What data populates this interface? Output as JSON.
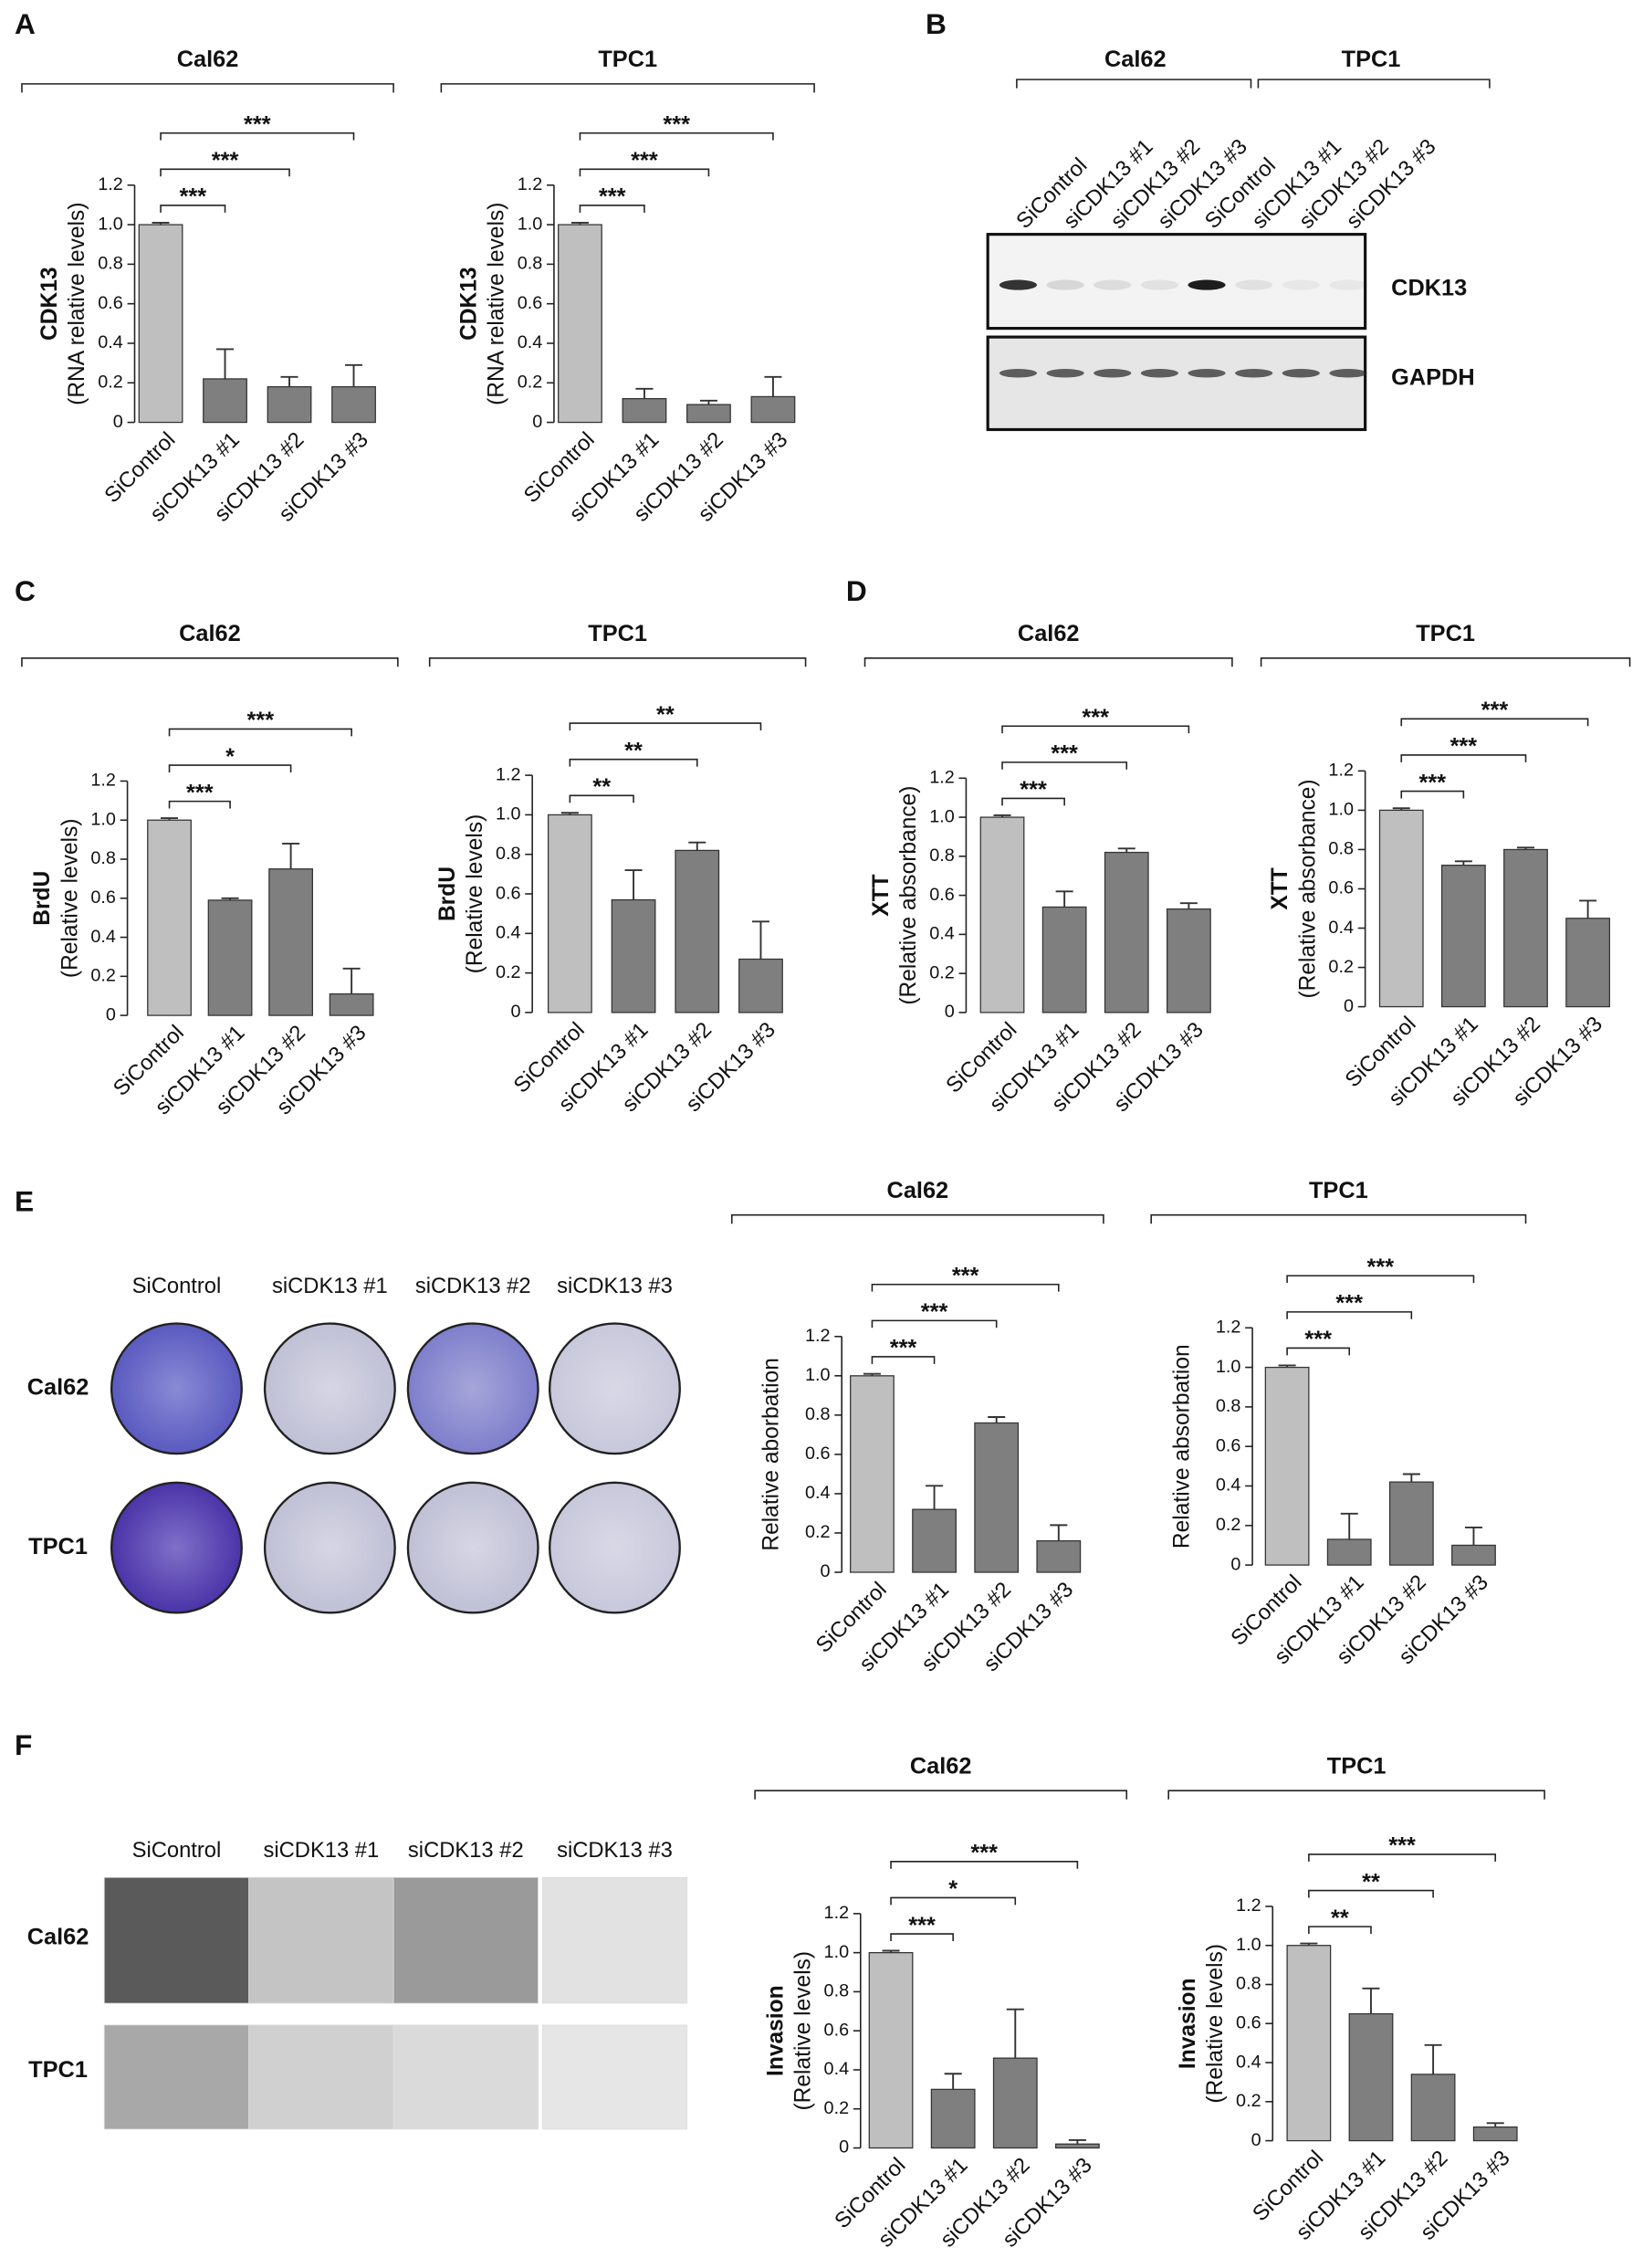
{
  "panel_labels": [
    "A",
    "B",
    "C",
    "D",
    "E",
    "F"
  ],
  "blot": {
    "groups": [
      "Cal62",
      "TPC1"
    ],
    "lanes": [
      "SiControl",
      "siCDK13 #1",
      "siCDK13 #2",
      "siCDK13 #3",
      "SiControl",
      "siCDK13 #1",
      "siCDK13 #2",
      "siCDK13 #3"
    ],
    "proteins": [
      "CDK13",
      "GAPDH"
    ]
  },
  "colony_assay": {
    "columns": [
      "SiControl",
      "siCDK13 #1",
      "siCDK13 #2",
      "siCDK13 #3"
    ],
    "rows": [
      "Cal62",
      "TPC1"
    ]
  },
  "invasion_assay": {
    "columns": [
      "SiControl",
      "siCDK13 #1",
      "siCDK13 #2",
      "siCDK13 #3"
    ],
    "rows": [
      "Cal62",
      "TPC1"
    ]
  },
  "chart_data": [
    {
      "type": "bar",
      "title": "Cal62",
      "ylabel": [
        "CDK13",
        "(RNA relative levels)"
      ],
      "categories": [
        "SiControl",
        "siCDK13 #1",
        "siCDK13 #2",
        "siCDK13 #3"
      ],
      "values": [
        1.0,
        0.22,
        0.18,
        0.18
      ],
      "errors": [
        0.01,
        0.15,
        0.05,
        0.11
      ],
      "colors": [
        "#bfbfbf",
        "#7f7f7f",
        "#7f7f7f",
        "#7f7f7f"
      ],
      "ylim": [
        0,
        1.2
      ],
      "yticks": [
        0,
        0.2,
        0.4,
        0.6,
        0.8,
        {
          "value": 1,
          "label": "1.0"
        },
        1.2
      ],
      "significance": [
        {
          "pair": [
            0,
            1
          ],
          "label": "***"
        },
        {
          "pair": [
            0,
            2
          ],
          "label": "***"
        },
        {
          "pair": [
            0,
            3
          ],
          "label": "***"
        }
      ]
    },
    {
      "type": "bar",
      "title": "TPC1",
      "ylabel": [
        "CDK13",
        "(RNA relative levels)"
      ],
      "categories": [
        "SiControl",
        "siCDK13 #1",
        "siCDK13 #2",
        "siCDK13 #3"
      ],
      "values": [
        1.0,
        0.12,
        0.09,
        0.13
      ],
      "errors": [
        0.01,
        0.05,
        0.02,
        0.1
      ],
      "colors": [
        "#bfbfbf",
        "#7f7f7f",
        "#7f7f7f",
        "#7f7f7f"
      ],
      "ylim": [
        0,
        1.2
      ],
      "yticks": [
        0,
        0.2,
        0.4,
        0.6,
        0.8,
        {
          "value": 1,
          "label": "1.0"
        },
        1.2
      ],
      "significance": [
        {
          "pair": [
            0,
            1
          ],
          "label": "***"
        },
        {
          "pair": [
            0,
            2
          ],
          "label": "***"
        },
        {
          "pair": [
            0,
            3
          ],
          "label": "***"
        }
      ]
    },
    {
      "type": "bar",
      "title": "Cal62",
      "ylabel": [
        "BrdU",
        "(Relative levels)"
      ],
      "categories": [
        "SiControl",
        "siCDK13 #1",
        "siCDK13 #2",
        "siCDK13 #3"
      ],
      "values": [
        1.0,
        0.59,
        0.75,
        0.11
      ],
      "errors": [
        0.01,
        0.01,
        0.13,
        0.13
      ],
      "colors": [
        "#bfbfbf",
        "#7f7f7f",
        "#7f7f7f",
        "#7f7f7f"
      ],
      "ylim": [
        0,
        1.2
      ],
      "yticks": [
        0,
        0.2,
        0.4,
        0.6,
        0.8,
        {
          "value": 1,
          "label": "1.0"
        },
        1.2
      ],
      "significance": [
        {
          "pair": [
            0,
            1
          ],
          "label": "***"
        },
        {
          "pair": [
            0,
            2
          ],
          "label": "*"
        },
        {
          "pair": [
            0,
            3
          ],
          "label": "***"
        }
      ]
    },
    {
      "type": "bar",
      "title": "TPC1",
      "ylabel": [
        "BrdU",
        "(Relative levels)"
      ],
      "categories": [
        "SiControl",
        "siCDK13 #1",
        "siCDK13 #2",
        "siCDK13 #3"
      ],
      "values": [
        1.0,
        0.57,
        0.82,
        0.27
      ],
      "errors": [
        0.01,
        0.15,
        0.04,
        0.19
      ],
      "colors": [
        "#bfbfbf",
        "#7f7f7f",
        "#7f7f7f",
        "#7f7f7f"
      ],
      "ylim": [
        0,
        1.2
      ],
      "yticks": [
        0,
        0.2,
        0.4,
        0.6,
        0.8,
        {
          "value": 1,
          "label": "1.0"
        },
        1.2
      ],
      "significance": [
        {
          "pair": [
            0,
            1
          ],
          "label": "**"
        },
        {
          "pair": [
            0,
            2
          ],
          "label": "**"
        },
        {
          "pair": [
            0,
            3
          ],
          "label": "**"
        }
      ]
    },
    {
      "type": "bar",
      "title": "Cal62",
      "ylabel": [
        "XTT",
        "(Relative absorbance)"
      ],
      "categories": [
        "SiControl",
        "siCDK13 #1",
        "siCDK13 #2",
        "siCDK13 #3"
      ],
      "values": [
        1.0,
        0.54,
        0.82,
        0.53
      ],
      "errors": [
        0.01,
        0.08,
        0.02,
        0.03
      ],
      "colors": [
        "#bfbfbf",
        "#7f7f7f",
        "#7f7f7f",
        "#7f7f7f"
      ],
      "ylim": [
        0,
        1.2
      ],
      "yticks": [
        0,
        0.2,
        0.4,
        0.6,
        0.8,
        {
          "value": 1,
          "label": "1.0"
        },
        1.2
      ],
      "significance": [
        {
          "pair": [
            0,
            1
          ],
          "label": "***"
        },
        {
          "pair": [
            0,
            2
          ],
          "label": "***"
        },
        {
          "pair": [
            0,
            3
          ],
          "label": "***"
        }
      ]
    },
    {
      "type": "bar",
      "title": "TPC1",
      "ylabel": [
        "XTT",
        "(Relative absorbance)"
      ],
      "categories": [
        "SiControl",
        "siCDK13 #1",
        "siCDK13 #2",
        "siCDK13 #3"
      ],
      "values": [
        1.0,
        0.72,
        0.8,
        0.45
      ],
      "errors": [
        0.01,
        0.02,
        0.01,
        0.09
      ],
      "colors": [
        "#bfbfbf",
        "#7f7f7f",
        "#7f7f7f",
        "#7f7f7f"
      ],
      "ylim": [
        0,
        1.2
      ],
      "yticks": [
        0,
        0.2,
        0.4,
        0.6,
        0.8,
        {
          "value": 1,
          "label": "1.0"
        },
        1.2
      ],
      "significance": [
        {
          "pair": [
            0,
            1
          ],
          "label": "***"
        },
        {
          "pair": [
            0,
            2
          ],
          "label": "***"
        },
        {
          "pair": [
            0,
            3
          ],
          "label": "***"
        }
      ]
    },
    {
      "type": "bar",
      "title": "Cal62",
      "ylabel": [
        "Relative aborbation"
      ],
      "categories": [
        "SiControl",
        "siCDK13 #1",
        "siCDK13 #2",
        "siCDK13 #3"
      ],
      "values": [
        1.0,
        0.32,
        0.76,
        0.16
      ],
      "errors": [
        0.01,
        0.12,
        0.03,
        0.08
      ],
      "colors": [
        "#bfbfbf",
        "#7f7f7f",
        "#7f7f7f",
        "#7f7f7f"
      ],
      "ylim": [
        0,
        1.2
      ],
      "yticks": [
        0,
        0.2,
        0.4,
        0.6,
        0.8,
        {
          "value": 1,
          "label": "1.0"
        },
        1.2
      ],
      "significance": [
        {
          "pair": [
            0,
            1
          ],
          "label": "***"
        },
        {
          "pair": [
            0,
            2
          ],
          "label": "***"
        },
        {
          "pair": [
            0,
            3
          ],
          "label": "***"
        }
      ]
    },
    {
      "type": "bar",
      "title": "TPC1",
      "ylabel": [
        "Relative absorbation"
      ],
      "categories": [
        "SiControl",
        "siCDK13 #1",
        "siCDK13 #2",
        "siCDK13 #3"
      ],
      "values": [
        1.0,
        0.13,
        0.42,
        0.1
      ],
      "errors": [
        0.01,
        0.13,
        0.04,
        0.09
      ],
      "colors": [
        "#bfbfbf",
        "#7f7f7f",
        "#7f7f7f",
        "#7f7f7f"
      ],
      "ylim": [
        0,
        1.2
      ],
      "yticks": [
        0,
        0.2,
        0.4,
        0.6,
        0.8,
        {
          "value": 1,
          "label": "1.0"
        },
        1.2
      ],
      "significance": [
        {
          "pair": [
            0,
            1
          ],
          "label": "***"
        },
        {
          "pair": [
            0,
            2
          ],
          "label": "***"
        },
        {
          "pair": [
            0,
            3
          ],
          "label": "***"
        }
      ]
    },
    {
      "type": "bar",
      "title": "Cal62",
      "ylabel": [
        "Invasion",
        "(Relative levels)"
      ],
      "categories": [
        "SiControl",
        "siCDK13 #1",
        "siCDK13 #2",
        "siCDK13 #3"
      ],
      "values": [
        1.0,
        0.3,
        0.46,
        0.02
      ],
      "errors": [
        0.01,
        0.08,
        0.25,
        0.02
      ],
      "colors": [
        "#bfbfbf",
        "#7f7f7f",
        "#7f7f7f",
        "#7f7f7f"
      ],
      "ylim": [
        0,
        1.2
      ],
      "yticks": [
        0,
        0.2,
        0.4,
        0.6,
        0.8,
        {
          "value": 1,
          "label": "1.0"
        },
        1.2
      ],
      "significance": [
        {
          "pair": [
            0,
            1
          ],
          "label": "***"
        },
        {
          "pair": [
            0,
            2
          ],
          "label": "*"
        },
        {
          "pair": [
            0,
            3
          ],
          "label": "***"
        }
      ]
    },
    {
      "type": "bar",
      "title": "TPC1",
      "ylabel": [
        "Invasion",
        "(Relative levels)"
      ],
      "categories": [
        "SiControl",
        "siCDK13 #1",
        "siCDK13 #2",
        "siCDK13 #3"
      ],
      "values": [
        1.0,
        0.65,
        0.34,
        0.07
      ],
      "errors": [
        0.01,
        0.13,
        0.15,
        0.02
      ],
      "colors": [
        "#bfbfbf",
        "#7f7f7f",
        "#7f7f7f",
        "#7f7f7f"
      ],
      "ylim": [
        0,
        1.2
      ],
      "yticks": [
        0,
        0.2,
        0.4,
        0.6,
        0.8,
        {
          "value": 1,
          "label": "1.0"
        },
        1.2
      ],
      "significance": [
        {
          "pair": [
            0,
            1
          ],
          "label": "**"
        },
        {
          "pair": [
            0,
            2
          ],
          "label": "**"
        },
        {
          "pair": [
            0,
            3
          ],
          "label": "***"
        }
      ]
    }
  ]
}
